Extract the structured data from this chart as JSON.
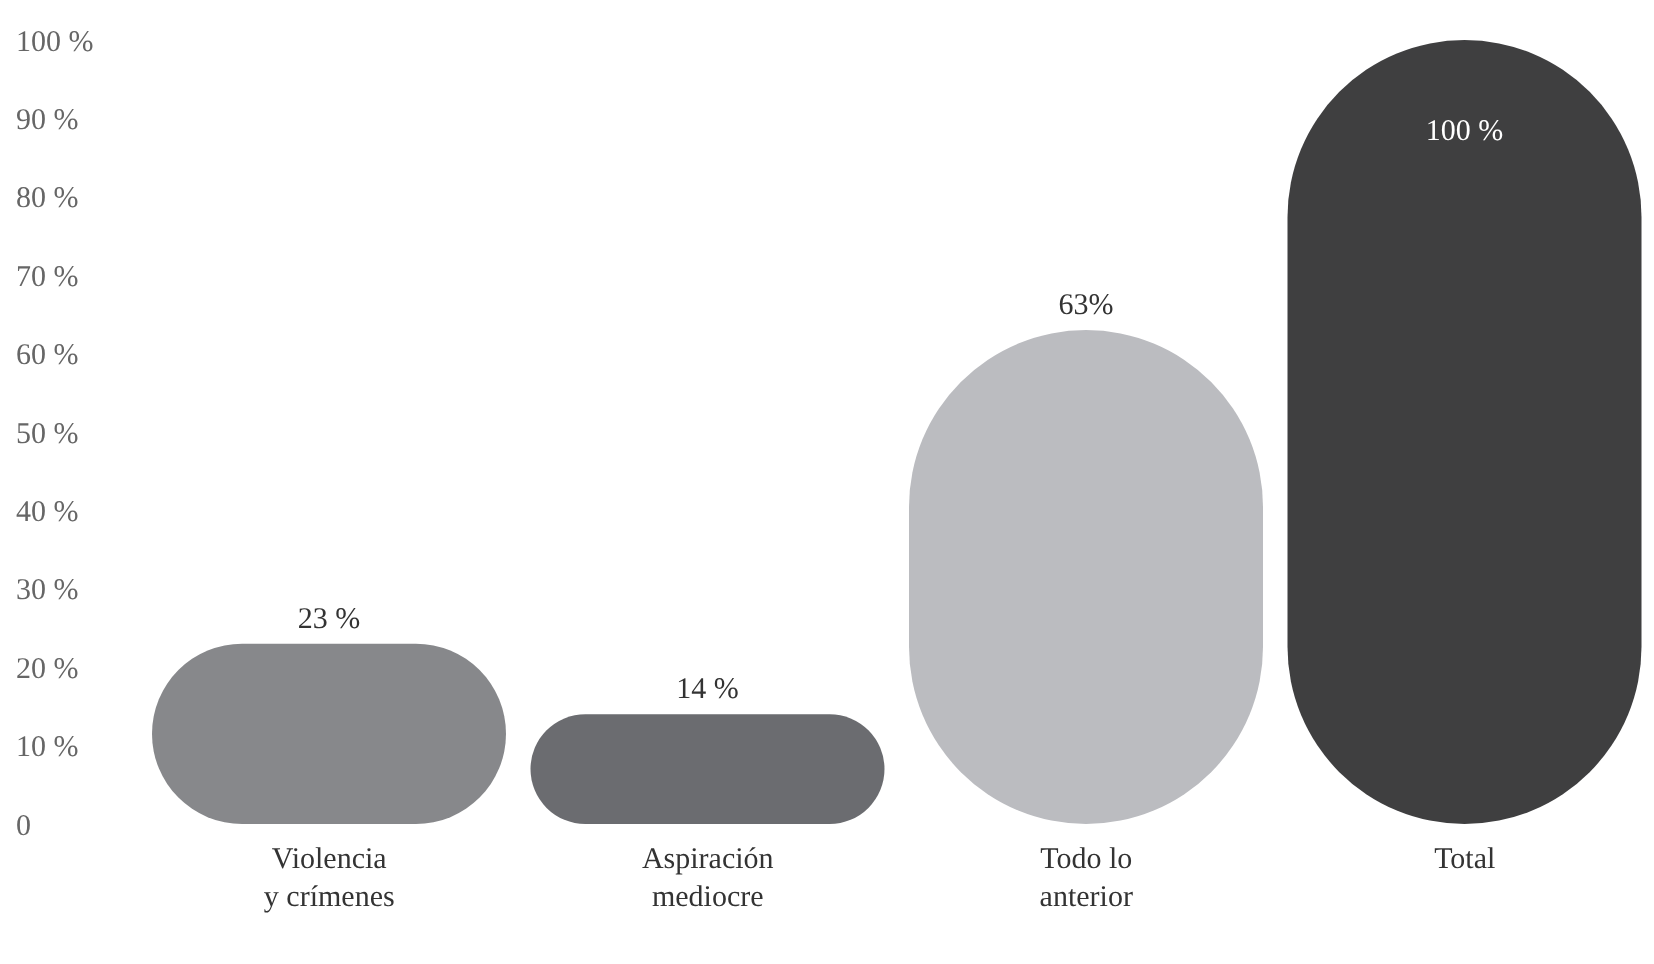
{
  "chart_data": {
    "type": "bar",
    "categories": [
      "Violencia\ny crímenes",
      "Aspiración\nmediocre",
      "Todo lo\nanterior",
      "Total"
    ],
    "values": [
      23,
      14,
      63,
      100
    ],
    "colors": [
      "#87888b",
      "#6b6c70",
      "#bbbcc0",
      "#3f3f40"
    ],
    "value_labels": [
      "23 %",
      "14 %",
      "63%",
      "100 %"
    ],
    "ylim": [
      0,
      100
    ],
    "yticks": [
      {
        "value": 0,
        "label": "0"
      },
      {
        "value": 10,
        "label": "10 %"
      },
      {
        "value": 20,
        "label": "20 %"
      },
      {
        "value": 30,
        "label": "30 %"
      },
      {
        "value": 40,
        "label": "40 %"
      },
      {
        "value": 50,
        "label": "50 %"
      },
      {
        "value": 60,
        "label": "60 %"
      },
      {
        "value": 70,
        "label": "70 %"
      },
      {
        "value": 80,
        "label": "80 %"
      },
      {
        "value": 90,
        "label": "90 %"
      },
      {
        "value": 100,
        "label": "100 %"
      }
    ],
    "grid": false,
    "legend": false
  }
}
